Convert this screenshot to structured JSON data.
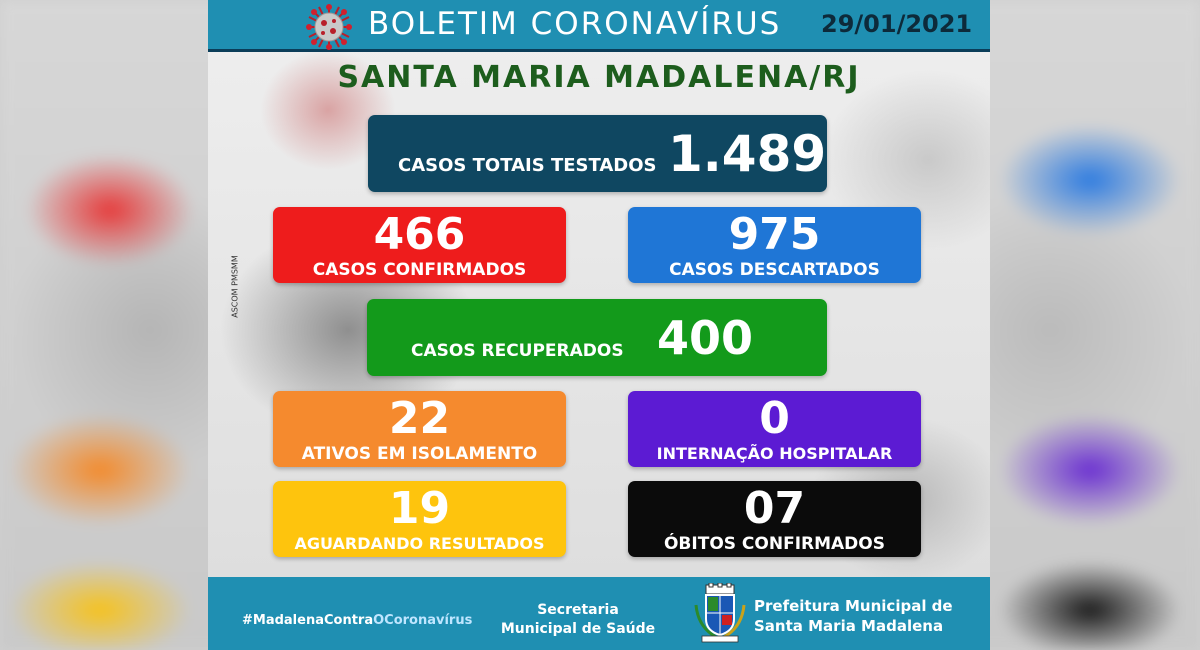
{
  "header": {
    "title": "BOLETIM CORONAVÍRUS",
    "date": "29/01/2021",
    "city": "SANTA MARIA MADALENA/RJ",
    "credit": "ASCOM PMSMM"
  },
  "cards": {
    "total": {
      "label": "CASOS TOTAIS TESTADOS",
      "value": "1.489",
      "color": "#0f4761"
    },
    "confirmed": {
      "label": "CASOS CONFIRMADOS",
      "value": "466",
      "color": "#ee1c1c"
    },
    "discarded": {
      "label": "CASOS DESCARTADOS",
      "value": "975",
      "color": "#1f76d6"
    },
    "recovered": {
      "label": "CASOS RECUPERADOS",
      "value": "400",
      "color": "#139a1b"
    },
    "isolation": {
      "label": "ATIVOS EM ISOLAMENTO",
      "value": "22",
      "color": "#f58a2e"
    },
    "hospital": {
      "label": "INTERNAÇÃO HOSPITALAR",
      "value": "0",
      "color": "#5c1bd3"
    },
    "awaiting": {
      "label": "AGUARDANDO RESULTADOS",
      "value": "19",
      "color": "#fec40d"
    },
    "deaths": {
      "label": "ÓBITOS CONFIRMADOS",
      "value": "07",
      "color": "#0b0b0b"
    }
  },
  "footer": {
    "hashtag_part1": "#MadalenaContra",
    "hashtag_part2": "OCoronavírus",
    "secretaria_line1": "Secretaria",
    "secretaria_line2": "Municipal de Saúde",
    "prefeitura_line1": "Prefeitura Municipal de",
    "prefeitura_line2": "Santa Maria Madalena"
  },
  "icons": {
    "header_icon": "coronavirus-icon",
    "footer_icon": "municipal-coat-of-arms-icon"
  }
}
